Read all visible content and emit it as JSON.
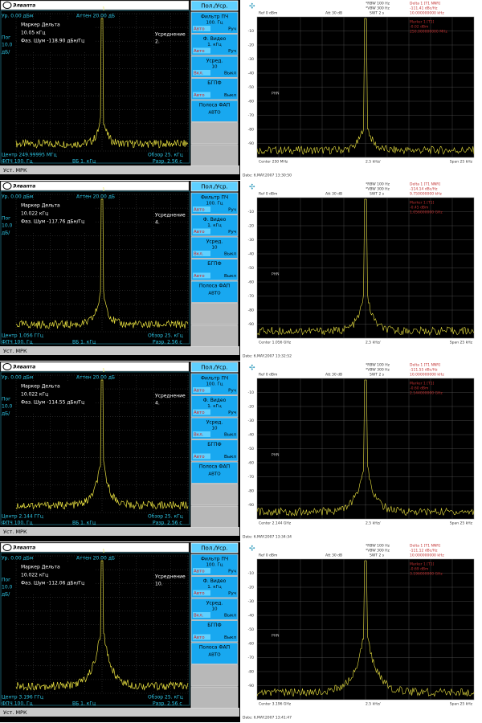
{
  "common": {
    "logo": "Элвапта",
    "mode_button": "Пол./Уср.",
    "scale": [
      "Пог",
      "10.0",
      "дБ/"
    ],
    "ref_level": "Ур. 0.00 дБм",
    "atten": "Аттен 20.00 дБ",
    "marker_title": "Маркер Дельта",
    "avg_label": "Усреднение",
    "span": "Обзор 25. кГц",
    "rbw": "ФПЧ 100. Гц",
    "vbw": "ВБ 1. кГц",
    "status": "Уст. МРК",
    "softkeys": [
      {
        "title": "Фильтр ПЧ",
        "value": "100. Гц",
        "left": "Авто",
        "right": "Руч"
      },
      {
        "title": "Ф. Видео",
        "value": "1. кГц",
        "left": "Авто",
        "right": "Руч"
      },
      {
        "title": "Усред.",
        "value": "10",
        "left": "Вкл.",
        "right": "Выкл"
      },
      {
        "title": "БГПФ",
        "left": "Авто",
        "right": "Выкл"
      },
      {
        "title": "Полоса ФАП",
        "value": "АВТО"
      }
    ],
    "right_header": {
      "rbw": "*RBW 100 Hz",
      "vbw": "*VBW 300 Hz",
      "swt": "SWT 2 s",
      "ref": "Ref  0 dBm",
      "att": "Att  30 dB",
      "delta": "Delta 1 [T1 NNR]",
      "marker": "Marker 1 [T1]",
      "phn": "PHN",
      "per_div": "2.5 kHz/",
      "span": "Span 25 kHz"
    },
    "y_labels": [
      "-10",
      "-20",
      "-30",
      "-40",
      "-50",
      "-60",
      "-70",
      "-80",
      "-90"
    ]
  },
  "rows": [
    {
      "marker_offset": "10.05 кГц",
      "phase_noise": "Фаз. Шум -118.90 дБн/Гц",
      "avg_count": "2.",
      "center": "Центр 249.99995 МГц",
      "sweep": "Разр. 2.56 с",
      "delta_value": "-111.41 dBc/Hz",
      "delta_offset": "10.000000000 kHz",
      "marker_level": "-0.02 dBm",
      "marker_freq": "250.000000000 MHz",
      "center_en": "Center 250 MHz",
      "date": "Date:   6.MAY.2007  13:30:50"
    },
    {
      "marker_offset": "10.022 кГц",
      "phase_noise": "Фаз. Шум -117.76 дБн/Гц",
      "avg_count": "4.",
      "center": "Центр 1.056 ГГц",
      "sweep": "Разр. 2.56 с",
      "delta_value": "-114.14 dBc/Hz",
      "delta_offset": "9.750000000 kHz",
      "marker_level": "-0.45 dBm",
      "marker_freq": "1.056000000 GHz",
      "center_en": "Center 1.056 GHz",
      "date": "Date:   6.MAY.2007  13:32:52"
    },
    {
      "marker_offset": "10.022 кГц",
      "phase_noise": "Фаз. Шум -114.55 дБн/Гц",
      "avg_count": "4.",
      "center": "Центр 2.144 ГГц",
      "sweep": "Разр. 2.56 с",
      "delta_value": "-111.55 dBc/Hz",
      "delta_offset": "10.000000000 kHz",
      "marker_level": "-0.60 dBm",
      "marker_freq": "2.144000000 GHz",
      "center_en": "Center 2.144 GHz",
      "date": "Date:   6.MAY.2007  13:34:34"
    },
    {
      "marker_offset": "10.022 кГц",
      "phase_noise": "Фаз. Шум -112.06 дБн/Гц",
      "avg_count": "10.",
      "center": "Центр 3.196 ГГц",
      "sweep": "Разр. 2.56 с",
      "delta_value": "-111.12 dBc/Hz",
      "delta_offset": "10.000000000 kHz",
      "marker_level": "-0.69 dBm",
      "marker_freq": "3.196000000 GHz",
      "center_en": "Center 3.196 GHz",
      "date": "Date:   6.MAY.2007  13:41:47"
    }
  ]
}
